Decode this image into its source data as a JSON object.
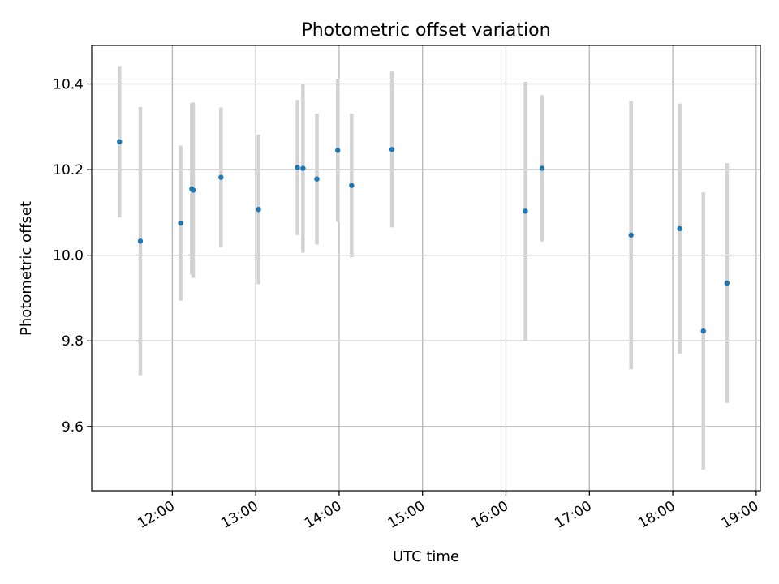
{
  "chart_data": {
    "type": "scatter",
    "title": "Photometric offset variation",
    "xlabel": "UTC time",
    "ylabel": "Photometric offset",
    "xlim": [
      "11:02",
      "19:03"
    ],
    "ylim": [
      9.45,
      10.49
    ],
    "grid": true,
    "x_ticks": [
      "12:00",
      "13:00",
      "14:00",
      "15:00",
      "16:00",
      "17:00",
      "18:00",
      "19:00"
    ],
    "y_ticks": [
      "9.6",
      "9.8",
      "10.0",
      "10.2",
      "10.4"
    ],
    "point_color": "#1f77b4",
    "errorbar_color": "#d3d3d3",
    "series": [
      {
        "points": [
          {
            "time": "11:22",
            "value": 10.265,
            "err": 0.177
          },
          {
            "time": "11:37",
            "value": 10.033,
            "err": 0.313
          },
          {
            "time": "12:06",
            "value": 10.075,
            "err": 0.181
          },
          {
            "time": "12:14",
            "value": 10.155,
            "err": 0.2
          },
          {
            "time": "12:15",
            "value": 10.152,
            "err": 0.205
          },
          {
            "time": "12:35",
            "value": 10.182,
            "err": 0.163
          },
          {
            "time": "13:02",
            "value": 10.107,
            "err": 0.175
          },
          {
            "time": "13:30",
            "value": 10.205,
            "err": 0.158
          },
          {
            "time": "13:34",
            "value": 10.203,
            "err": 0.197
          },
          {
            "time": "13:44",
            "value": 10.178,
            "err": 0.153
          },
          {
            "time": "13:59",
            "value": 10.245,
            "err": 0.167
          },
          {
            "time": "14:09",
            "value": 10.163,
            "err": 0.168
          },
          {
            "time": "14:38",
            "value": 10.247,
            "err": 0.182
          },
          {
            "time": "16:14",
            "value": 10.103,
            "err": 0.302
          },
          {
            "time": "16:26",
            "value": 10.203,
            "err": 0.171
          },
          {
            "time": "17:30",
            "value": 10.047,
            "err": 0.313
          },
          {
            "time": "18:05",
            "value": 10.062,
            "err": 0.292
          },
          {
            "time": "18:22",
            "value": 9.823,
            "err": 0.324
          },
          {
            "time": "18:39",
            "value": 9.935,
            "err": 0.28
          }
        ]
      }
    ]
  }
}
